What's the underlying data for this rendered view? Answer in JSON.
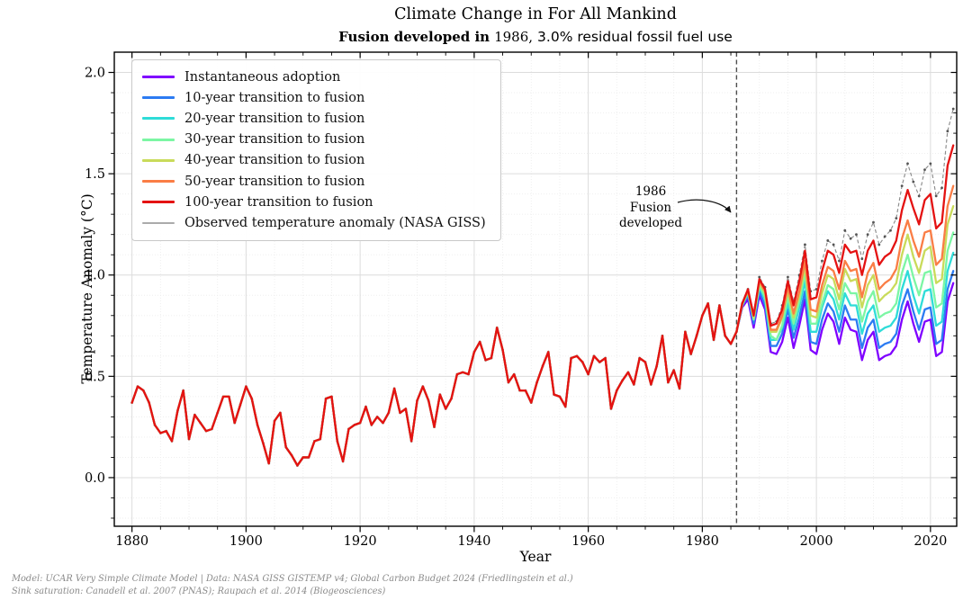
{
  "title": "Climate Change in For All Mankind",
  "subtitle": {
    "bold": "Fusion developed in",
    "year": "1986,",
    "rest": "3.0% residual fossil fuel use"
  },
  "footer": {
    "line1": "Model: UCAR Very Simple Climate Model  |  Data: NASA GISS GISTEMP v4; Global Carbon Budget 2024 (Friedlingstein et al.)",
    "line2": "Sink saturation: Canadell et al. 2007 (PNAS); Raupach et al. 2014 (Biogeosciences)"
  },
  "chart_data": {
    "type": "line",
    "xlabel": "Year",
    "ylabel": "Temperature Anomaly (°C)",
    "x_ticks": [
      1880,
      1900,
      1920,
      1940,
      1960,
      1980,
      2000,
      2020
    ],
    "x_minor_step": 5,
    "y_ticks": [
      "0.0",
      "0.5",
      "1.0",
      "1.5",
      "2.0"
    ],
    "y_minor_step": 0.1,
    "xlim": [
      1876.9,
      2024.6
    ],
    "ylim": [
      -0.24,
      2.1
    ],
    "grid": true,
    "legend_position": "upper left",
    "year_start": 1880,
    "scenario_year_start": 1986,
    "event_line": {
      "year": 1986,
      "label_lines": [
        "1986",
        "Fusion",
        "developed"
      ],
      "color": "#4d4d4d",
      "style": "dashed"
    },
    "observed": {
      "label": "Observed temperature anomaly (NASA GISS)",
      "color": "#8c8c8c",
      "marker_color": "#555555",
      "legend_color": "#ababab",
      "style": "dashed-dotted",
      "values": [
        0.37,
        0.45,
        0.43,
        0.37,
        0.26,
        0.22,
        0.23,
        0.18,
        0.33,
        0.43,
        0.19,
        0.31,
        0.27,
        0.23,
        0.24,
        0.32,
        0.4,
        0.4,
        0.27,
        0.36,
        0.45,
        0.39,
        0.26,
        0.17,
        0.07,
        0.28,
        0.32,
        0.15,
        0.11,
        0.06,
        0.1,
        0.1,
        0.18,
        0.19,
        0.39,
        0.4,
        0.18,
        0.08,
        0.24,
        0.26,
        0.27,
        0.35,
        0.26,
        0.3,
        0.27,
        0.32,
        0.44,
        0.32,
        0.34,
        0.18,
        0.38,
        0.45,
        0.38,
        0.25,
        0.41,
        0.34,
        0.39,
        0.51,
        0.52,
        0.51,
        0.62,
        0.67,
        0.58,
        0.59,
        0.74,
        0.63,
        0.47,
        0.51,
        0.43,
        0.43,
        0.37,
        0.47,
        0.55,
        0.62,
        0.41,
        0.4,
        0.35,
        0.59,
        0.6,
        0.57,
        0.51,
        0.6,
        0.57,
        0.59,
        0.34,
        0.43,
        0.48,
        0.52,
        0.46,
        0.59,
        0.57,
        0.46,
        0.55,
        0.7,
        0.47,
        0.53,
        0.44,
        0.72,
        0.61,
        0.7,
        0.8,
        0.86,
        0.68,
        0.85,
        0.7,
        0.66,
        0.72,
        0.86,
        0.93,
        0.81,
        0.99,
        0.94,
        0.76,
        0.77,
        0.85,
        0.99,
        0.87,
        1.0,
        1.15,
        0.92,
        0.93,
        1.07,
        1.17,
        1.15,
        1.07,
        1.22,
        1.18,
        1.2,
        1.08,
        1.2,
        1.26,
        1.15,
        1.19,
        1.22,
        1.28,
        1.44,
        1.55,
        1.46,
        1.39,
        1.52,
        1.55,
        1.39,
        1.43,
        1.71,
        1.82
      ]
    },
    "series": [
      {
        "label": "Instantaneous adoption",
        "color": "#7f00ff",
        "values": [
          0.72,
          0.84,
          0.88,
          0.74,
          0.9,
          0.83,
          0.62,
          0.61,
          0.67,
          0.79,
          0.64,
          0.75,
          0.88,
          0.63,
          0.61,
          0.73,
          0.81,
          0.77,
          0.66,
          0.79,
          0.73,
          0.72,
          0.58,
          0.68,
          0.72,
          0.58,
          0.6,
          0.61,
          0.65,
          0.78,
          0.87,
          0.76,
          0.67,
          0.77,
          0.78,
          0.6,
          0.62,
          0.87,
          0.96
        ]
      },
      {
        "label": "10-year transition to fusion",
        "color": "#2c7bf2",
        "values": [
          0.72,
          0.85,
          0.9,
          0.76,
          0.92,
          0.85,
          0.65,
          0.65,
          0.71,
          0.83,
          0.69,
          0.79,
          0.92,
          0.67,
          0.66,
          0.78,
          0.86,
          0.82,
          0.72,
          0.85,
          0.78,
          0.78,
          0.64,
          0.74,
          0.78,
          0.64,
          0.66,
          0.67,
          0.71,
          0.85,
          0.93,
          0.82,
          0.73,
          0.83,
          0.84,
          0.66,
          0.68,
          0.93,
          1.02
        ]
      },
      {
        "label": "20-year transition to fusion",
        "color": "#2edcd8",
        "values": [
          0.72,
          0.85,
          0.91,
          0.78,
          0.94,
          0.88,
          0.68,
          0.68,
          0.74,
          0.86,
          0.73,
          0.84,
          0.97,
          0.72,
          0.72,
          0.84,
          0.92,
          0.88,
          0.78,
          0.91,
          0.85,
          0.85,
          0.71,
          0.81,
          0.85,
          0.72,
          0.74,
          0.75,
          0.79,
          0.93,
          1.02,
          0.9,
          0.81,
          0.92,
          0.93,
          0.75,
          0.77,
          1.02,
          1.11
        ]
      },
      {
        "label": "30-year transition to fusion",
        "color": "#7cf6a4",
        "values": [
          0.72,
          0.85,
          0.92,
          0.78,
          0.95,
          0.89,
          0.7,
          0.68,
          0.75,
          0.89,
          0.76,
          0.87,
          1.01,
          0.76,
          0.76,
          0.86,
          0.95,
          0.93,
          0.83,
          0.96,
          0.91,
          0.91,
          0.77,
          0.87,
          0.92,
          0.79,
          0.81,
          0.82,
          0.86,
          1.01,
          1.1,
          0.99,
          0.9,
          1.01,
          1.02,
          0.84,
          0.86,
          1.12,
          1.21
        ]
      },
      {
        "label": "40-year transition to fusion",
        "color": "#c9db5a",
        "values": [
          0.72,
          0.86,
          0.92,
          0.79,
          0.96,
          0.91,
          0.72,
          0.72,
          0.79,
          0.92,
          0.79,
          0.9,
          1.04,
          0.8,
          0.79,
          0.91,
          1.0,
          0.98,
          0.88,
          1.03,
          0.97,
          0.98,
          0.84,
          0.95,
          1.0,
          0.87,
          0.9,
          0.92,
          0.96,
          1.1,
          1.2,
          1.09,
          1.01,
          1.12,
          1.14,
          0.96,
          0.98,
          1.25,
          1.34
        ]
      },
      {
        "label": "50-year transition to fusion",
        "color": "#fa7d45",
        "values": [
          0.72,
          0.86,
          0.92,
          0.8,
          0.97,
          0.92,
          0.73,
          0.73,
          0.8,
          0.94,
          0.81,
          0.92,
          1.07,
          0.83,
          0.82,
          0.95,
          1.04,
          1.02,
          0.93,
          1.07,
          1.02,
          1.03,
          0.89,
          1.01,
          1.06,
          0.93,
          0.96,
          0.98,
          1.03,
          1.18,
          1.27,
          1.17,
          1.09,
          1.21,
          1.22,
          1.05,
          1.08,
          1.34,
          1.44
        ]
      },
      {
        "label": "100-year transition to fusion",
        "color": "#e41212",
        "values": [
          0.72,
          0.86,
          0.93,
          0.8,
          0.98,
          0.93,
          0.75,
          0.76,
          0.83,
          0.97,
          0.85,
          0.97,
          1.12,
          0.88,
          0.89,
          1.02,
          1.12,
          1.1,
          1.01,
          1.15,
          1.11,
          1.12,
          1.0,
          1.12,
          1.17,
          1.05,
          1.09,
          1.11,
          1.17,
          1.32,
          1.42,
          1.33,
          1.25,
          1.37,
          1.4,
          1.23,
          1.26,
          1.54,
          1.64
        ]
      }
    ]
  }
}
